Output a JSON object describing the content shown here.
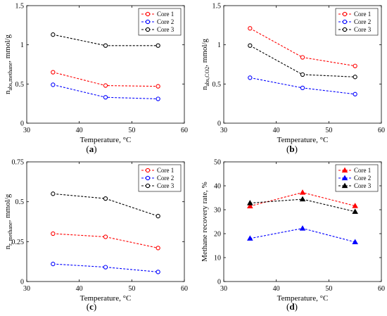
{
  "colors": {
    "core1": "#ff0000",
    "core2": "#0000ff",
    "core3": "#000000"
  },
  "chart_data": [
    {
      "id": "a",
      "type": "line",
      "caption": "a",
      "xlabel": "Temperature, °C",
      "ylabel_main": "n",
      "ylabel_sub": "abs,methane",
      "ylabel_rest": ", mmol/g",
      "xlim": [
        30,
        60
      ],
      "ylim": [
        0,
        1.5
      ],
      "xticks": [
        30,
        40,
        50,
        60
      ],
      "xtick_labels": [
        "30",
        "40",
        "50",
        "60"
      ],
      "yticks": [
        0,
        0.5,
        1,
        1.5
      ],
      "ytick_labels": [
        "0",
        "0.5",
        "1",
        "1.5"
      ],
      "marker": "circle",
      "legend_position": "top-right",
      "x": [
        35,
        45,
        55
      ],
      "series": [
        {
          "name": "Core 1",
          "color_key": "core1",
          "values": [
            0.65,
            0.48,
            0.47
          ]
        },
        {
          "name": "Core 2",
          "color_key": "core2",
          "values": [
            0.49,
            0.33,
            0.31
          ]
        },
        {
          "name": "Core 3",
          "color_key": "core3",
          "values": [
            1.13,
            0.99,
            0.99
          ]
        }
      ]
    },
    {
      "id": "b",
      "type": "line",
      "caption": "b",
      "xlabel": "Temperature, °C",
      "ylabel_main": "n",
      "ylabel_sub": "abs,CO2",
      "ylabel_rest": ", mmol/g",
      "xlim": [
        30,
        60
      ],
      "ylim": [
        0,
        1.5
      ],
      "xticks": [
        30,
        40,
        50,
        60
      ],
      "xtick_labels": [
        "30",
        "40",
        "50",
        "60"
      ],
      "yticks": [
        0,
        0.5,
        1,
        1.5
      ],
      "ytick_labels": [
        "0",
        "0.5",
        "1",
        "1.5"
      ],
      "marker": "circle",
      "legend_position": "top-right",
      "x": [
        35,
        45,
        55
      ],
      "series": [
        {
          "name": "Core 1",
          "color_key": "core1",
          "values": [
            1.21,
            0.84,
            0.73
          ]
        },
        {
          "name": "Core 2",
          "color_key": "core2",
          "values": [
            0.58,
            0.45,
            0.37
          ]
        },
        {
          "name": "Core 3",
          "color_key": "core3",
          "values": [
            0.99,
            0.62,
            0.59
          ]
        }
      ]
    },
    {
      "id": "c",
      "type": "line",
      "caption": "c",
      "xlabel": "Temperature, °C",
      "ylabel_main": "n",
      "ylabel_sub": "r, methane",
      "ylabel_rest": ", mmol/g",
      "xlim": [
        30,
        60
      ],
      "ylim": [
        0,
        0.75
      ],
      "xticks": [
        30,
        40,
        50,
        60
      ],
      "xtick_labels": [
        "30",
        "40",
        "50",
        "60"
      ],
      "yticks": [
        0,
        0.25,
        0.5,
        0.75
      ],
      "ytick_labels": [
        "0",
        "0.25",
        "0.5",
        "0.75"
      ],
      "marker": "circle",
      "legend_position": "top-right",
      "x": [
        35,
        45,
        55
      ],
      "series": [
        {
          "name": "Core 1",
          "color_key": "core1",
          "values": [
            0.3,
            0.28,
            0.21
          ]
        },
        {
          "name": "Core 2",
          "color_key": "core2",
          "values": [
            0.11,
            0.09,
            0.06
          ]
        },
        {
          "name": "Core 3",
          "color_key": "core3",
          "values": [
            0.55,
            0.52,
            0.41
          ]
        }
      ]
    },
    {
      "id": "d",
      "type": "line",
      "caption": "d",
      "xlabel": "Temperature, °C",
      "ylabel_main": "Methane recovery rate, %",
      "ylabel_sub": "",
      "ylabel_rest": "",
      "xlim": [
        30,
        60
      ],
      "ylim": [
        0,
        50
      ],
      "xticks": [
        30,
        40,
        50,
        60
      ],
      "xtick_labels": [
        "30",
        "40",
        "50",
        "60"
      ],
      "yticks": [
        0,
        10,
        20,
        30,
        40,
        50
      ],
      "ytick_labels": [
        "0",
        "10",
        "20",
        "30",
        "40",
        "50"
      ],
      "marker": "triangle",
      "legend_position": "top-right",
      "x": [
        35,
        45,
        55
      ],
      "series": [
        {
          "name": "Core 1",
          "color_key": "core1",
          "values": [
            31.5,
            37.2,
            31.6
          ]
        },
        {
          "name": "Core 2",
          "color_key": "core2",
          "values": [
            18.0,
            22.2,
            16.5
          ]
        },
        {
          "name": "Core 3",
          "color_key": "core3",
          "values": [
            32.8,
            34.4,
            29.2
          ]
        }
      ]
    }
  ]
}
